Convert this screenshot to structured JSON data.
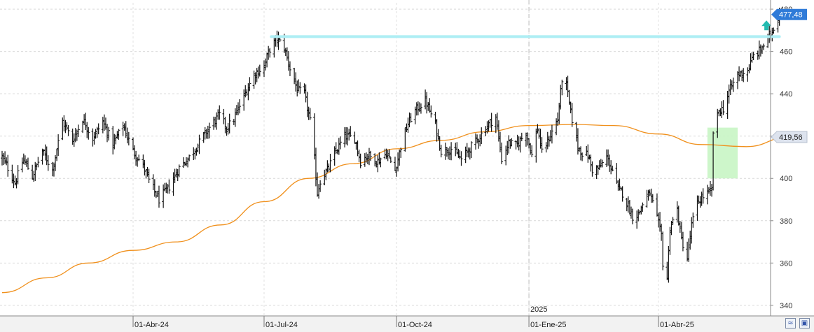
{
  "chart_data": {
    "type": "ohlc",
    "y_axis": {
      "range": [
        335,
        483
      ],
      "ticks": [
        {
          "value": 340,
          "label": "340"
        },
        {
          "value": 360,
          "label": "360"
        },
        {
          "value": 380,
          "label": "380"
        },
        {
          "value": 400,
          "label": "400"
        },
        {
          "value": 420,
          "label": "420"
        },
        {
          "value": 440,
          "label": "440"
        },
        {
          "value": 460,
          "label": "460"
        },
        {
          "value": 480,
          "label": "480"
        }
      ],
      "grid": true,
      "side": "right"
    },
    "x_axis": {
      "range": [
        "2024-01-01",
        "2025-06-13"
      ],
      "ticks": [
        {
          "date": "2024-04-01",
          "label": "01-Abr-24"
        },
        {
          "date": "2024-07-01",
          "label": "01-Jul-24"
        },
        {
          "date": "2024-10-01",
          "label": "01-Oct-24"
        },
        {
          "date": "2025-01-01",
          "label": "01-Ene-25"
        },
        {
          "date": "2025-04-01",
          "label": "01-Abr-25"
        }
      ],
      "grid": true,
      "year_marker": {
        "date": "2025-01-01",
        "label": "2025"
      }
    },
    "price_series": {
      "color": "#111111",
      "anchors": [
        [
          "2024-01-01",
          410
        ],
        [
          "2024-01-05",
          405
        ],
        [
          "2024-01-10",
          398
        ],
        [
          "2024-01-16",
          409
        ],
        [
          "2024-01-22",
          401
        ],
        [
          "2024-01-29",
          413
        ],
        [
          "2024-02-05",
          404
        ],
        [
          "2024-02-12",
          427
        ],
        [
          "2024-02-19",
          418
        ],
        [
          "2024-02-26",
          428
        ],
        [
          "2024-03-04",
          419
        ],
        [
          "2024-03-11",
          427
        ],
        [
          "2024-03-18",
          416
        ],
        [
          "2024-03-25",
          425
        ],
        [
          "2024-04-01",
          413
        ],
        [
          "2024-04-08",
          406
        ],
        [
          "2024-04-12",
          399
        ],
        [
          "2024-04-19",
          390
        ],
        [
          "2024-04-26",
          396
        ],
        [
          "2024-05-03",
          405
        ],
        [
          "2024-05-10",
          410
        ],
        [
          "2024-05-17",
          417
        ],
        [
          "2024-05-24",
          424
        ],
        [
          "2024-05-31",
          430
        ],
        [
          "2024-06-05",
          424
        ],
        [
          "2024-06-10",
          428
        ],
        [
          "2024-06-17",
          439
        ],
        [
          "2024-06-24",
          449
        ],
        [
          "2024-07-01",
          453
        ],
        [
          "2024-07-05",
          461
        ],
        [
          "2024-07-10",
          466
        ],
        [
          "2024-07-15",
          462
        ],
        [
          "2024-07-19",
          452
        ],
        [
          "2024-07-24",
          442
        ],
        [
          "2024-07-29",
          440
        ],
        [
          "2024-08-02",
          427
        ],
        [
          "2024-08-05",
          409
        ],
        [
          "2024-08-07",
          393
        ],
        [
          "2024-08-09",
          399
        ],
        [
          "2024-08-14",
          404
        ],
        [
          "2024-08-20",
          413
        ],
        [
          "2024-08-26",
          420
        ],
        [
          "2024-09-02",
          419
        ],
        [
          "2024-09-06",
          408
        ],
        [
          "2024-09-11",
          411
        ],
        [
          "2024-09-18",
          408
        ],
        [
          "2024-09-24",
          412
        ],
        [
          "2024-09-30",
          404
        ],
        [
          "2024-10-04",
          415
        ],
        [
          "2024-10-09",
          426
        ],
        [
          "2024-10-14",
          432
        ],
        [
          "2024-10-21",
          437
        ],
        [
          "2024-10-28",
          425
        ],
        [
          "2024-11-01",
          413
        ],
        [
          "2024-11-08",
          414
        ],
        [
          "2024-11-15",
          409
        ],
        [
          "2024-11-22",
          415
        ],
        [
          "2024-11-27",
          419
        ],
        [
          "2024-12-03",
          425
        ],
        [
          "2024-12-09",
          429
        ],
        [
          "2024-12-13",
          409
        ],
        [
          "2024-12-18",
          417
        ],
        [
          "2024-12-23",
          415
        ],
        [
          "2024-12-30",
          422
        ],
        [
          "2025-01-03",
          411
        ],
        [
          "2025-01-07",
          424
        ],
        [
          "2025-01-10",
          412
        ],
        [
          "2025-01-15",
          419
        ],
        [
          "2025-01-21",
          428
        ],
        [
          "2025-01-24",
          447
        ],
        [
          "2025-01-27",
          444
        ],
        [
          "2025-01-30",
          431
        ],
        [
          "2025-02-04",
          415
        ],
        [
          "2025-02-07",
          412
        ],
        [
          "2025-02-11",
          411
        ],
        [
          "2025-02-14",
          404
        ],
        [
          "2025-02-19",
          405
        ],
        [
          "2025-02-24",
          410
        ],
        [
          "2025-02-28",
          404
        ],
        [
          "2025-03-04",
          395
        ],
        [
          "2025-03-07",
          393
        ],
        [
          "2025-03-11",
          387
        ],
        [
          "2025-03-14",
          382
        ],
        [
          "2025-03-18",
          383
        ],
        [
          "2025-03-21",
          388
        ],
        [
          "2025-03-26",
          393
        ],
        [
          "2025-03-31",
          381
        ],
        [
          "2025-04-03",
          373
        ],
        [
          "2025-04-04",
          360
        ],
        [
          "2025-04-07",
          353
        ],
        [
          "2025-04-09",
          377
        ],
        [
          "2025-04-14",
          385
        ],
        [
          "2025-04-17",
          371
        ],
        [
          "2025-04-21",
          362
        ],
        [
          "2025-04-24",
          378
        ],
        [
          "2025-04-28",
          388
        ],
        [
          "2025-05-01",
          391
        ],
        [
          "2025-05-05",
          393
        ],
        [
          "2025-05-08",
          394
        ],
        [
          "2025-05-09",
          422
        ],
        [
          "2025-05-13",
          432
        ],
        [
          "2025-05-16",
          433
        ],
        [
          "2025-05-20",
          441
        ],
        [
          "2025-05-26",
          449
        ],
        [
          "2025-06-02",
          451
        ],
        [
          "2025-06-06",
          458
        ],
        [
          "2025-06-10",
          460
        ],
        [
          "2025-06-17",
          467
        ],
        [
          "2025-06-21",
          473
        ],
        [
          "2025-06-24",
          477.48
        ]
      ]
    },
    "moving_average": {
      "color": "#f0901c",
      "points": [
        [
          "2024-01-01",
          346
        ],
        [
          "2024-02-01",
          353
        ],
        [
          "2024-03-01",
          360
        ],
        [
          "2024-04-01",
          366
        ],
        [
          "2024-05-01",
          370
        ],
        [
          "2024-06-01",
          378
        ],
        [
          "2024-07-01",
          389
        ],
        [
          "2024-08-01",
          400
        ],
        [
          "2024-09-01",
          407
        ],
        [
          "2024-10-01",
          414
        ],
        [
          "2024-11-01",
          418
        ],
        [
          "2024-12-01",
          422
        ],
        [
          "2025-01-01",
          425
        ],
        [
          "2025-02-01",
          425.5
        ],
        [
          "2025-03-01",
          425
        ],
        [
          "2025-04-01",
          421
        ],
        [
          "2025-05-01",
          416
        ],
        [
          "2025-06-01",
          415
        ],
        [
          "2025-07-01",
          419.56
        ]
      ]
    },
    "resistance_line": {
      "value": 467,
      "from": "2024-07-06",
      "to": "2025-06-24",
      "color": "#aeeef4"
    },
    "highlight_zone": {
      "from": "2025-05-05",
      "to": "2025-05-26",
      "low": 400,
      "high": 424,
      "color": "#c8f5c4"
    },
    "arrow_marker": {
      "date": "2025-06-15",
      "value": 472,
      "direction": "up",
      "color": "#22bbb0"
    },
    "last_price_tag": {
      "label": "477,48",
      "value": 477.48,
      "color": "#2f7bd8"
    },
    "ma_tag": {
      "label": "419,56",
      "value": 419.56,
      "color": "#dde3ee"
    }
  }
}
